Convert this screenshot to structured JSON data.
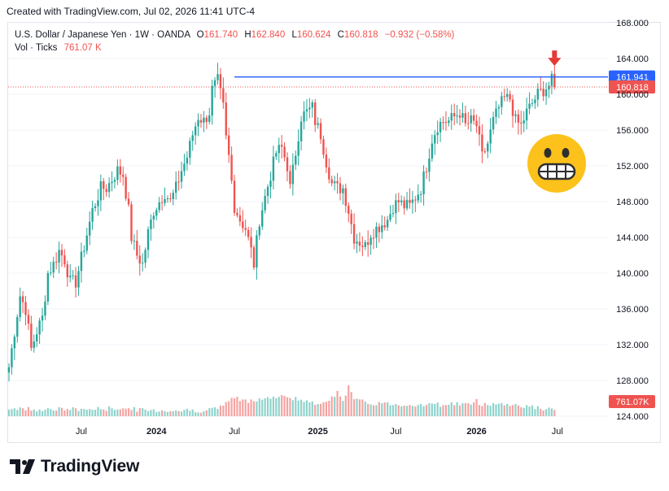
{
  "header": {
    "created_with": "Created with TradingView.com, Jul 02, 2026 11:41 UTC-4"
  },
  "legend": {
    "symbol": "U.S. Dollar / Japanese Yen · 1W · OANDA",
    "open_label": "O",
    "open": "161.740",
    "high_label": "H",
    "high": "162.840",
    "low_label": "L",
    "low": "160.624",
    "close_label": "C",
    "close": "160.818",
    "change": "−0.932 (−0.58%)",
    "volume_label": "Vol · Ticks",
    "volume": "761.07 K"
  },
  "colors": {
    "up": "#26a69a",
    "down": "#ef5350",
    "vol_up": "#8fd3cc",
    "vol_down": "#f4a4a2",
    "resistance": "#2962ff",
    "last_price": "#ef5350",
    "arrow": "#e53935",
    "emoji_face": "#fcc21b"
  },
  "chart_data": {
    "type": "candlestick",
    "title": "",
    "xlabel": "",
    "ylabel": "",
    "ylim": [
      124,
      168
    ],
    "y_ticks": [
      "168.000",
      "164.000",
      "160.000",
      "156.000",
      "152.000",
      "148.000",
      "144.000",
      "140.000",
      "136.000",
      "132.000",
      "128.000",
      "124.000"
    ],
    "x_ticks": [
      "Jul",
      "2024",
      "Jul",
      "2025",
      "Jul",
      "2026",
      "Jul"
    ],
    "resistance_level": 161.941,
    "resistance_label": "161.941",
    "last_price": 160.818,
    "last_price_label": "160.818",
    "volume_label": "761.07K",
    "annotations": [
      "down-arrow at recent high",
      "grimacing-face-emoji"
    ],
    "anchors": [
      [
        0,
        129.5
      ],
      [
        2,
        133.5
      ],
      [
        4,
        137.5
      ],
      [
        6,
        136
      ],
      [
        8,
        131.5
      ],
      [
        10,
        133.5
      ],
      [
        12,
        135
      ],
      [
        14,
        140
      ],
      [
        16,
        141
      ],
      [
        18,
        142.5
      ],
      [
        20,
        141.5
      ],
      [
        22,
        139
      ],
      [
        24,
        139
      ],
      [
        27,
        143
      ],
      [
        30,
        147
      ],
      [
        33,
        149.5
      ],
      [
        35,
        149.5
      ],
      [
        37,
        150.5
      ],
      [
        39,
        151.5
      ],
      [
        41,
        151
      ],
      [
        43,
        147
      ],
      [
        44,
        144
      ],
      [
        46,
        142
      ],
      [
        48,
        141
      ],
      [
        50,
        144.5
      ],
      [
        52,
        147
      ],
      [
        54,
        148
      ],
      [
        56,
        149
      ],
      [
        58,
        148
      ],
      [
        60,
        149.5
      ],
      [
        62,
        151.5
      ],
      [
        64,
        153
      ],
      [
        66,
        155.5
      ],
      [
        68,
        157.5
      ],
      [
        70,
        157
      ],
      [
        72,
        158
      ],
      [
        73,
        160.5
      ],
      [
        75,
        161.5
      ],
      [
        77,
        158.5
      ],
      [
        78,
        155
      ],
      [
        79,
        153
      ],
      [
        81,
        147.5
      ],
      [
        83,
        146
      ],
      [
        85,
        145
      ],
      [
        87,
        142.5
      ],
      [
        88,
        141
      ],
      [
        90,
        146
      ],
      [
        92,
        148.5
      ],
      [
        94,
        151
      ],
      [
        96,
        153.5
      ],
      [
        98,
        154
      ],
      [
        100,
        152
      ],
      [
        101,
        149.5
      ],
      [
        103,
        153.5
      ],
      [
        105,
        157.5
      ],
      [
        107,
        158
      ],
      [
        109,
        158.5
      ],
      [
        110,
        157
      ],
      [
        112,
        155.5
      ],
      [
        114,
        152.5
      ],
      [
        116,
        150
      ],
      [
        118,
        149.5
      ],
      [
        120,
        149.5
      ],
      [
        122,
        147
      ],
      [
        124,
        144
      ],
      [
        126,
        143.5
      ],
      [
        128,
        143
      ],
      [
        130,
        144.5
      ],
      [
        132,
        145
      ],
      [
        134,
        145.5
      ],
      [
        136,
        146
      ],
      [
        138,
        147.5
      ],
      [
        140,
        148
      ],
      [
        142,
        147.5
      ],
      [
        144,
        147.5
      ],
      [
        146,
        148.5
      ],
      [
        148,
        149.5
      ],
      [
        150,
        152
      ],
      [
        152,
        155
      ],
      [
        154,
        156.5
      ],
      [
        156,
        157
      ],
      [
        158,
        157
      ],
      [
        160,
        157.5
      ],
      [
        162,
        158
      ],
      [
        164,
        156.5
      ],
      [
        166,
        157
      ],
      [
        168,
        156.5
      ],
      [
        170,
        153
      ],
      [
        172,
        154.5
      ],
      [
        174,
        157
      ],
      [
        176,
        158.5
      ],
      [
        178,
        159.5
      ],
      [
        180,
        159.5
      ],
      [
        182,
        157
      ],
      [
        184,
        156.5
      ],
      [
        186,
        158
      ],
      [
        188,
        159
      ],
      [
        190,
        160
      ],
      [
        192,
        160.5
      ],
      [
        194,
        161
      ],
      [
        195,
        161.5
      ],
      [
        196,
        160.8
      ]
    ],
    "volume_anchors": [
      [
        0,
        27
      ],
      [
        10,
        26
      ],
      [
        20,
        26
      ],
      [
        30,
        26
      ],
      [
        40,
        27
      ],
      [
        50,
        25
      ],
      [
        60,
        25
      ],
      [
        70,
        25
      ],
      [
        75,
        27
      ],
      [
        78,
        31
      ],
      [
        80,
        36
      ],
      [
        85,
        33
      ],
      [
        90,
        35
      ],
      [
        95,
        36
      ],
      [
        100,
        37
      ],
      [
        105,
        34
      ],
      [
        110,
        30
      ],
      [
        115,
        35
      ],
      [
        118,
        40
      ],
      [
        120,
        33
      ],
      [
        122,
        46
      ],
      [
        124,
        34
      ],
      [
        126,
        33
      ],
      [
        130,
        31
      ],
      [
        135,
        31
      ],
      [
        140,
        30
      ],
      [
        145,
        30
      ],
      [
        150,
        30
      ],
      [
        155,
        30
      ],
      [
        160,
        31
      ],
      [
        165,
        30
      ],
      [
        168,
        33
      ],
      [
        170,
        30
      ],
      [
        175,
        31
      ],
      [
        180,
        30
      ],
      [
        185,
        29
      ],
      [
        190,
        27
      ],
      [
        196,
        25
      ]
    ]
  }
}
